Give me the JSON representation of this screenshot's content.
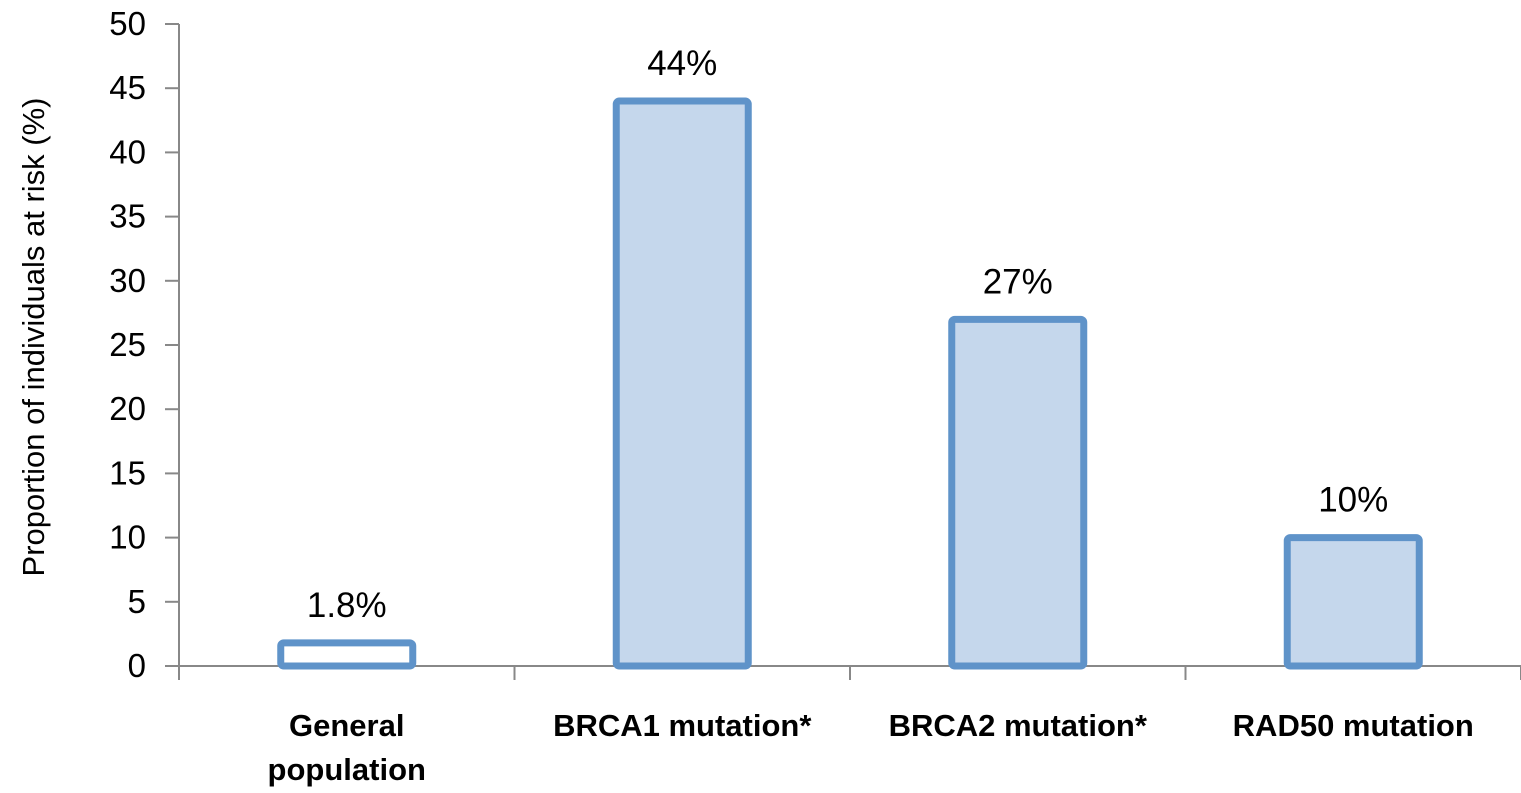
{
  "chart_data": {
    "type": "bar",
    "categories": [
      [
        "General",
        "population"
      ],
      [
        "BRCA1 mutation*"
      ],
      [
        "BRCA2 mutation*"
      ],
      [
        "RAD50 mutation"
      ]
    ],
    "values": [
      1.8,
      44,
      27,
      10
    ],
    "data_labels": [
      "1.8%",
      "44%",
      "27%",
      "10%"
    ],
    "bar_fill": [
      "#ffffff",
      "#c5d7ec",
      "#c5d7ec",
      "#c5d7ec"
    ],
    "bar_stroke": "#5f93c9",
    "ylabel": "Proportion of individuals at risk (%)",
    "ylim": [
      0,
      50
    ],
    "yticks": [
      0,
      5,
      10,
      15,
      20,
      25,
      30,
      35,
      40,
      45,
      50
    ],
    "grid": false
  }
}
